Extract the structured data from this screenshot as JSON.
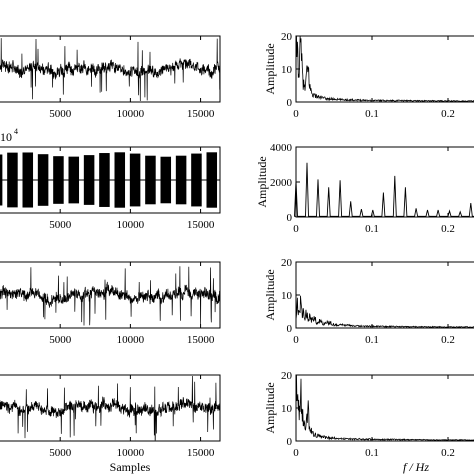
{
  "chart_data": [
    {
      "type": "line",
      "panel": "left-1",
      "x_tick_labels": [
        "5000",
        "10000",
        "15000"
      ],
      "x_ticks": [
        5000,
        10000,
        15000
      ],
      "xlim": [
        0,
        16384
      ],
      "xlabel": "",
      "ylabel": "",
      "series": [
        {
          "baseline": 0,
          "noise_amplitude": 0.9,
          "spike_amplitude": 2.8
        }
      ]
    },
    {
      "type": "line",
      "panel": "left-2",
      "exponent_label": "10",
      "exponent_power": "4",
      "x_tick_labels": [
        "5000",
        "10000",
        "15000"
      ],
      "x_ticks": [
        5000,
        10000,
        15000
      ],
      "xlim": [
        0,
        16384
      ],
      "xlabel": "",
      "ylabel": "",
      "series": [
        {
          "burst_count": 15,
          "burst_width_samples": 750,
          "burst_amplitude": 1.0
        }
      ]
    },
    {
      "type": "line",
      "panel": "left-3",
      "x_tick_labels": [
        "5000",
        "10000",
        "15000"
      ],
      "x_ticks": [
        5000,
        10000,
        15000
      ],
      "xlim": [
        0,
        16384
      ],
      "xlabel": "",
      "ylabel": "",
      "series": [
        {
          "baseline": 0,
          "noise_amplitude": 0.9,
          "spike_amplitude": 2.8
        }
      ]
    },
    {
      "type": "line",
      "panel": "left-4",
      "x_tick_labels": [
        "5000",
        "10000",
        "15000"
      ],
      "x_ticks": [
        5000,
        10000,
        15000
      ],
      "xlim": [
        0,
        16384
      ],
      "xlabel": "Samples",
      "ylabel": "",
      "series": [
        {
          "baseline": 0,
          "noise_amplitude": 0.9,
          "spike_amplitude": 2.8
        }
      ]
    },
    {
      "type": "line",
      "panel": "right-1",
      "xlim": [
        0,
        0.25
      ],
      "ylim": [
        0,
        20
      ],
      "x_tick_labels": [
        "0",
        "0.1",
        "0.2"
      ],
      "x_ticks": [
        0,
        0.1,
        0.2
      ],
      "y_tick_labels": [
        "0",
        "10",
        "20"
      ],
      "y_ticks": [
        0,
        10,
        20
      ],
      "ylabel": "Amplitude",
      "xlabel": "",
      "series": [
        {
          "points": [
            [
              0.0,
              20
            ],
            [
              0.002,
              15
            ],
            [
              0.004,
              9
            ],
            [
              0.006,
              17
            ],
            [
              0.008,
              10
            ],
            [
              0.01,
              5
            ],
            [
              0.012,
              4
            ],
            [
              0.014,
              8
            ],
            [
              0.016,
              10
            ],
            [
              0.018,
              5
            ],
            [
              0.02,
              3
            ],
            [
              0.024,
              2
            ],
            [
              0.03,
              1.5
            ],
            [
              0.04,
              1
            ],
            [
              0.06,
              0.7
            ],
            [
              0.1,
              0.5
            ],
            [
              0.15,
              0.4
            ],
            [
              0.2,
              0.3
            ],
            [
              0.25,
              0.3
            ]
          ]
        }
      ]
    },
    {
      "type": "line",
      "panel": "right-2",
      "xlim": [
        0,
        0.25
      ],
      "ylim": [
        0,
        4000
      ],
      "x_tick_labels": [
        "0",
        "0.1",
        "0.2"
      ],
      "x_ticks": [
        0,
        0.1,
        0.2
      ],
      "y_tick_labels": [
        "0",
        "2000",
        "4000"
      ],
      "y_ticks": [
        0,
        2000,
        4000
      ],
      "ylabel": "Amplitude",
      "xlabel": "",
      "series": [
        {
          "peaks": [
            [
              0.0,
              2100
            ],
            [
              0.0145,
              3100
            ],
            [
              0.029,
              2150
            ],
            [
              0.043,
              1700
            ],
            [
              0.058,
              2100
            ],
            [
              0.072,
              900
            ],
            [
              0.086,
              450
            ],
            [
              0.101,
              400
            ],
            [
              0.115,
              1400
            ],
            [
              0.13,
              2350
            ],
            [
              0.144,
              1700
            ],
            [
              0.158,
              500
            ],
            [
              0.173,
              400
            ],
            [
              0.187,
              400
            ],
            [
              0.202,
              350
            ],
            [
              0.216,
              300
            ],
            [
              0.23,
              800
            ],
            [
              0.245,
              300
            ]
          ]
        }
      ]
    },
    {
      "type": "line",
      "panel": "right-3",
      "xlim": [
        0,
        0.25
      ],
      "ylim": [
        0,
        20
      ],
      "x_tick_labels": [
        "0",
        "0.1",
        "0.2"
      ],
      "x_ticks": [
        0,
        0.1,
        0.2
      ],
      "y_tick_labels": [
        "0",
        "10",
        "20"
      ],
      "y_ticks": [
        0,
        10,
        20
      ],
      "ylabel": "Amplitude",
      "xlabel": "",
      "series": [
        {
          "points": [
            [
              0.0,
              4
            ],
            [
              0.002,
              7
            ],
            [
              0.004,
              5
            ],
            [
              0.006,
              8
            ],
            [
              0.008,
              4
            ],
            [
              0.01,
              6
            ],
            [
              0.012,
              3
            ],
            [
              0.014,
              5
            ],
            [
              0.016,
              2.5
            ],
            [
              0.018,
              4
            ],
            [
              0.02,
              2
            ],
            [
              0.024,
              3
            ],
            [
              0.028,
              1.5
            ],
            [
              0.032,
              2.5
            ],
            [
              0.036,
              1.2
            ],
            [
              0.04,
              2
            ],
            [
              0.05,
              1
            ],
            [
              0.06,
              0.9
            ],
            [
              0.08,
              0.6
            ],
            [
              0.1,
              0.5
            ],
            [
              0.15,
              0.4
            ],
            [
              0.2,
              0.3
            ],
            [
              0.25,
              0.3
            ]
          ]
        }
      ]
    },
    {
      "type": "line",
      "panel": "right-4",
      "xlim": [
        0,
        0.25
      ],
      "ylim": [
        0,
        20
      ],
      "x_tick_labels": [
        "0",
        "0.1",
        "0.2"
      ],
      "x_ticks": [
        0,
        0.1,
        0.2
      ],
      "y_tick_labels": [
        "0",
        "10",
        "20"
      ],
      "y_ticks": [
        0,
        10,
        20
      ],
      "ylabel": "Amplitude",
      "xlabel": "f / Hz",
      "series": [
        {
          "points": [
            [
              0.0,
              19
            ],
            [
              0.002,
              14
            ],
            [
              0.004,
              8
            ],
            [
              0.006,
              16
            ],
            [
              0.008,
              9
            ],
            [
              0.01,
              5
            ],
            [
              0.012,
              4
            ],
            [
              0.014,
              7
            ],
            [
              0.016,
              9
            ],
            [
              0.018,
              4
            ],
            [
              0.02,
              3
            ],
            [
              0.024,
              2
            ],
            [
              0.03,
              1.5
            ],
            [
              0.04,
              1
            ],
            [
              0.06,
              0.7
            ],
            [
              0.1,
              0.5
            ],
            [
              0.15,
              0.4
            ],
            [
              0.2,
              0.3
            ],
            [
              0.25,
              0.3
            ]
          ]
        }
      ]
    }
  ]
}
